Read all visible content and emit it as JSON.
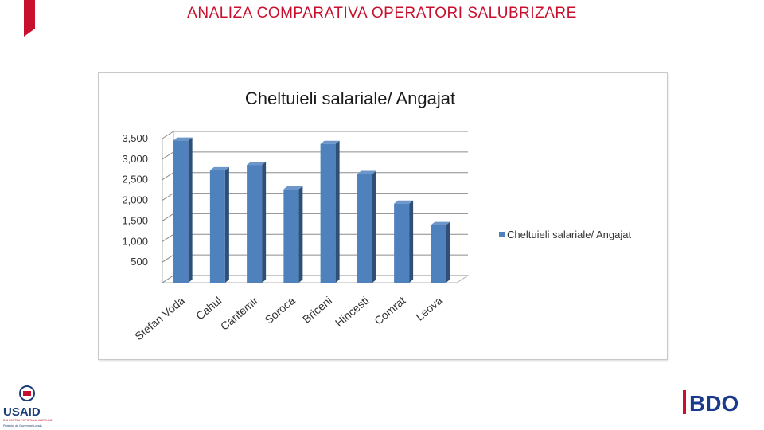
{
  "slide": {
    "title": "ANALIZA COMPARATIVA OPERATORI SALUBRIZARE"
  },
  "logos": {
    "usaid": {
      "text": "USAID",
      "tagline": "DIN PARTEA POPORULUI AMERICAN",
      "sub": "Proiectul de Guvernare Locală"
    },
    "bdo": {
      "text": "BDO"
    }
  },
  "colors": {
    "accent_red": "#c8102e",
    "bar_front": "#4f81bd",
    "bar_side": "#2e4f77",
    "bar_top": "#6d96cb",
    "usaid_blue": "#1c3f7a",
    "bdo_blue": "#1b3a8c"
  },
  "chart_data": {
    "type": "bar",
    "title": "Cheltuieli salariale/ Angajat",
    "categories": [
      "Stefan Voda",
      "Cahul",
      "Cantemir",
      "Soroca",
      "Briceni",
      "Hincesti",
      "Comrat",
      "Leova"
    ],
    "series": [
      {
        "name": "Cheltuieli salariale/ Angajat",
        "values": [
          3450,
          2730,
          2860,
          2270,
          3370,
          2640,
          1920,
          1400
        ]
      }
    ],
    "yticks": [
      "-",
      "500",
      "1,000",
      "1,500",
      "2,000",
      "2,500",
      "3,000",
      "3,500"
    ],
    "ylim": [
      0,
      3500
    ],
    "grid": true,
    "legend": "right",
    "three_d": true
  }
}
